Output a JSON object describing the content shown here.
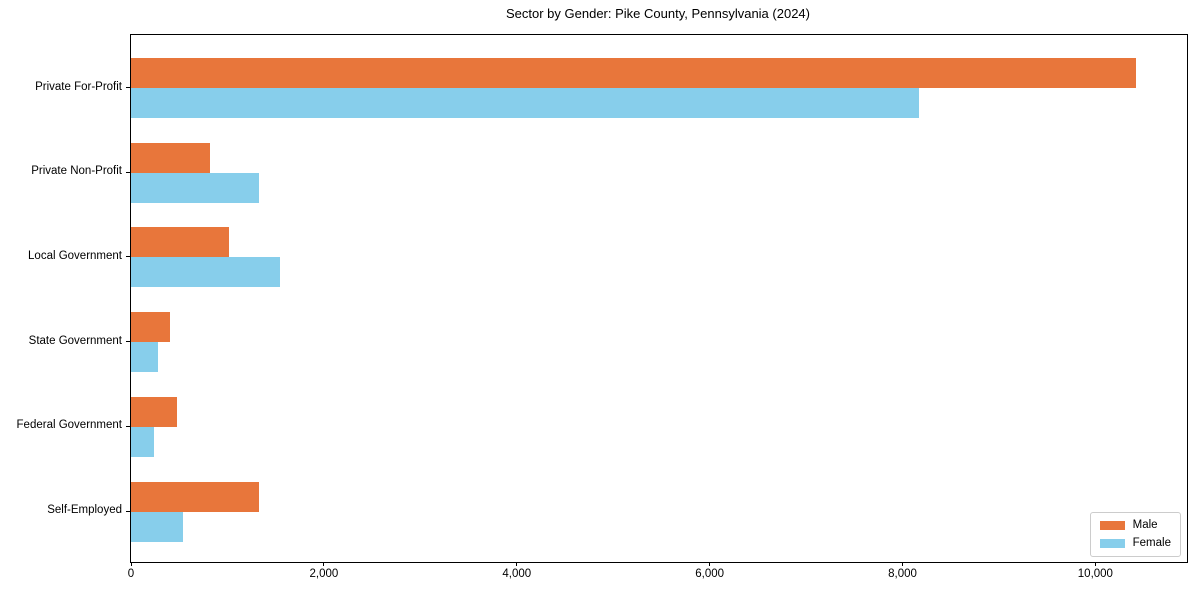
{
  "figure": {
    "background": "#ffffff"
  },
  "chart_data": {
    "type": "bar",
    "orientation": "horizontal",
    "title": "Sector by Gender: Pike County, Pennsylvania (2024)",
    "xlabel": "",
    "ylabel": "",
    "categories": [
      "Private For-Profit",
      "Private Non-Profit",
      "Local Government",
      "State Government",
      "Federal Government",
      "Self-Employed"
    ],
    "series": [
      {
        "name": "Male",
        "color": "#E8763B",
        "values": [
          10420,
          820,
          1020,
          400,
          480,
          1330
        ]
      },
      {
        "name": "Female",
        "color": "#87CEEB",
        "values": [
          8170,
          1330,
          1550,
          280,
          240,
          540
        ]
      }
    ],
    "xlim": [
      0,
      10950
    ],
    "x_ticks": [
      0,
      2000,
      4000,
      6000,
      8000,
      10000
    ],
    "x_tick_labels": [
      "0",
      "2,000",
      "4,000",
      "6,000",
      "8,000",
      "10,000"
    ],
    "grid": "off",
    "legend": {
      "position": "lower right",
      "items": [
        "Male",
        "Female"
      ]
    },
    "axis_color": "#000000"
  }
}
